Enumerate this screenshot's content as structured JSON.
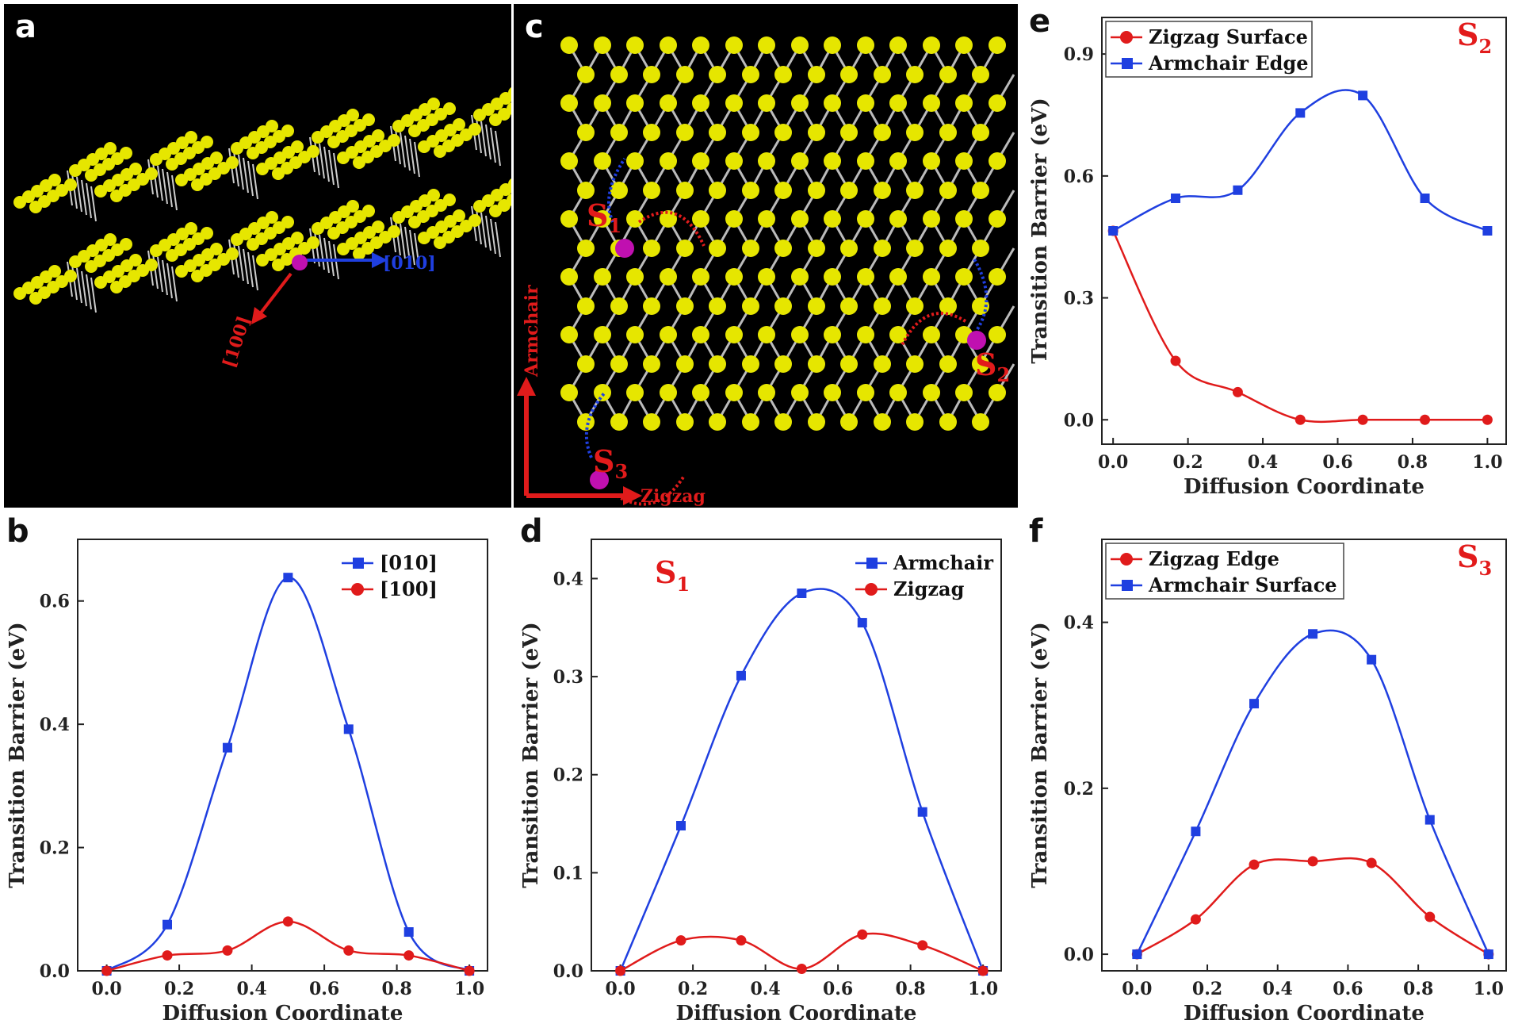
{
  "panels": {
    "a": {
      "letter": "a",
      "dir_010": "[010]",
      "dir_100": "[100]"
    },
    "c": {
      "letter": "c",
      "armchair": "Armchair",
      "zigzag": "Zigzag",
      "s1": "S",
      "s1_sub": "1",
      "s2": "S",
      "s2_sub": "2",
      "s3": "S",
      "s3_sub": "3"
    }
  },
  "colors": {
    "blue": "#1f3fe0",
    "red": "#e01b1b",
    "yellow": "#e6e600",
    "magenta": "#c010b0"
  },
  "chart_data": [
    {
      "id": "b",
      "type": "line",
      "letter": "b",
      "title": "",
      "xlabel": "Diffusion Coordinate",
      "ylabel": "Transition Barrier (eV)",
      "xlim": [
        -0.08,
        1.05
      ],
      "ylim": [
        0,
        0.7
      ],
      "xticks": [
        0.0,
        0.2,
        0.4,
        0.6,
        0.8,
        1.0
      ],
      "xtick_labels": [
        "0.0",
        "0.2",
        "0.4",
        "0.6",
        "0.8",
        "1.0"
      ],
      "yticks": [
        0.0,
        0.2,
        0.4,
        0.6
      ],
      "ytick_labels": [
        "0.0",
        "0.2",
        "0.4",
        "0.6"
      ],
      "legend": "top-right",
      "series": [
        {
          "name": "[010]",
          "color": "#1f3fe0",
          "marker": "square",
          "x": [
            0,
            0.167,
            0.333,
            0.5,
            0.667,
            0.833,
            1.0
          ],
          "y": [
            0.0,
            0.075,
            0.362,
            0.638,
            0.392,
            0.063,
            0.0
          ]
        },
        {
          "name": "[100]",
          "color": "#e01b1b",
          "marker": "circle",
          "x": [
            0,
            0.167,
            0.333,
            0.5,
            0.667,
            0.833,
            1.0
          ],
          "y": [
            0.0,
            0.025,
            0.033,
            0.08,
            0.033,
            0.025,
            0.0
          ]
        }
      ]
    },
    {
      "id": "d",
      "type": "line",
      "letter": "d",
      "site": "S",
      "site_sub": "1",
      "title": "",
      "xlabel": "Diffusion Coordinate",
      "ylabel": "Transition Barrier (eV)",
      "xlim": [
        -0.08,
        1.05
      ],
      "ylim": [
        0,
        0.44
      ],
      "xticks": [
        0.0,
        0.2,
        0.4,
        0.6,
        0.8,
        1.0
      ],
      "xtick_labels": [
        "0.0",
        "0.2",
        "0.4",
        "0.6",
        "0.8",
        "1.0"
      ],
      "yticks": [
        0.0,
        0.1,
        0.2,
        0.3,
        0.4
      ],
      "ytick_labels": [
        "0.0",
        "0.1",
        "0.2",
        "0.3",
        "0.4"
      ],
      "legend": "top-right",
      "series": [
        {
          "name": "Armchair",
          "color": "#1f3fe0",
          "marker": "square",
          "x": [
            0,
            0.167,
            0.333,
            0.5,
            0.667,
            0.833,
            1.0
          ],
          "y": [
            0.0,
            0.148,
            0.301,
            0.385,
            0.355,
            0.162,
            0.0
          ]
        },
        {
          "name": "Zigzag",
          "color": "#e01b1b",
          "marker": "circle",
          "x": [
            0,
            0.167,
            0.333,
            0.5,
            0.667,
            0.833,
            1.0
          ],
          "y": [
            0.0,
            0.031,
            0.031,
            0.002,
            0.037,
            0.026,
            0.0
          ]
        }
      ]
    },
    {
      "id": "e",
      "type": "line",
      "letter": "e",
      "site": "S",
      "site_sub": "2",
      "title": "",
      "xlabel": "Diffusion Coordinate",
      "ylabel": "Transition Barrier (eV)",
      "xlim": [
        -0.03,
        1.05
      ],
      "ylim": [
        -0.06,
        0.99
      ],
      "xticks": [
        0.0,
        0.2,
        0.4,
        0.6,
        0.8,
        1.0
      ],
      "xtick_labels": [
        "0.0",
        "0.2",
        "0.4",
        "0.6",
        "0.8",
        "1.0"
      ],
      "yticks": [
        0.0,
        0.3,
        0.6,
        0.9
      ],
      "ytick_labels": [
        "0.0",
        "0.3",
        "0.6",
        "0.9"
      ],
      "legend": "top-left",
      "series": [
        {
          "name": "Zigzag Surface",
          "color": "#e01b1b",
          "marker": "circle",
          "x": [
            0,
            0.167,
            0.333,
            0.5,
            0.667,
            0.833,
            1.0
          ],
          "y": [
            0.465,
            0.145,
            0.068,
            0.0,
            0.0,
            0.0,
            0.0
          ]
        },
        {
          "name": "Armchair Edge",
          "color": "#1f3fe0",
          "marker": "square",
          "x": [
            0,
            0.167,
            0.333,
            0.5,
            0.667,
            0.833,
            1.0
          ],
          "y": [
            0.465,
            0.545,
            0.565,
            0.755,
            0.798,
            0.545,
            0.465
          ]
        }
      ]
    },
    {
      "id": "f",
      "type": "line",
      "letter": "f",
      "site": "S",
      "site_sub": "3",
      "title": "",
      "xlabel": "Diffusion Coordinate",
      "ylabel": "Transition Barrier (eV)",
      "xlim": [
        -0.1,
        1.05
      ],
      "ylim": [
        -0.02,
        0.5
      ],
      "xticks": [
        0.0,
        0.2,
        0.4,
        0.6,
        0.8,
        1.0
      ],
      "xtick_labels": [
        "0.0",
        "0.2",
        "0.4",
        "0.6",
        "0.8",
        "1.0"
      ],
      "yticks": [
        0.0,
        0.2,
        0.4
      ],
      "ytick_labels": [
        "0.0",
        "0.2",
        "0.4"
      ],
      "legend": "top-left",
      "series": [
        {
          "name": "Zigzag Edge",
          "color": "#e01b1b",
          "marker": "circle",
          "x": [
            0,
            0.167,
            0.333,
            0.5,
            0.667,
            0.833,
            1.0
          ],
          "y": [
            0.0,
            0.042,
            0.108,
            0.112,
            0.11,
            0.045,
            0.0
          ]
        },
        {
          "name": "Armchair Surface",
          "color": "#1f3fe0",
          "marker": "square",
          "x": [
            0,
            0.167,
            0.333,
            0.5,
            0.667,
            0.833,
            1.0
          ],
          "y": [
            0.0,
            0.148,
            0.302,
            0.386,
            0.355,
            0.162,
            0.0
          ]
        }
      ]
    }
  ]
}
